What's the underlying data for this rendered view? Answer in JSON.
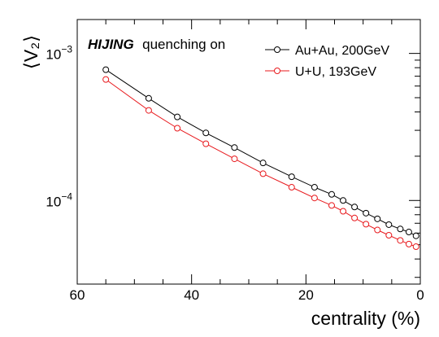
{
  "chart_data": {
    "type": "line",
    "title": "",
    "xlabel": "centrality (%)",
    "ylabel": "⟨V₂⟩",
    "x_reversed": true,
    "xlim": [
      60,
      0
    ],
    "ylim": [
      2.7e-05,
      0.0017
    ],
    "yscale": "log",
    "grid": false,
    "legend_position": "top-right",
    "annotation": {
      "bold": "HIJING",
      "text": "quenching on"
    },
    "x_ticks": [
      60,
      40,
      20,
      0
    ],
    "y_ticks": [
      {
        "value": 0.001,
        "mantissa": "10",
        "exponent": "−3"
      },
      {
        "value": 0.0001,
        "mantissa": "10",
        "exponent": "−4"
      }
    ],
    "x": [
      55,
      47.5,
      42.5,
      37.5,
      32.5,
      27.5,
      22.5,
      18.5,
      15.5,
      13.5,
      11.5,
      9.5,
      7.5,
      5.5,
      3.5,
      2,
      0.75
    ],
    "series": [
      {
        "name": "Au+Au, 200GeV",
        "color": "#000000",
        "values": [
          0.000775,
          0.000495,
          0.00037,
          0.000288,
          0.000229,
          0.00018,
          0.000145,
          0.000123,
          0.00011,
          0.0001,
          9.03e-05,
          8.2e-05,
          7.5e-05,
          6.85e-05,
          6.4e-05,
          6.1e-05,
          5.75e-05
        ]
      },
      {
        "name": "U+U, 193GeV",
        "color": "#e8191d",
        "values": [
          0.000665,
          0.00041,
          0.00031,
          0.000243,
          0.000192,
          0.000152,
          0.000123,
          0.000104,
          9.25e-05,
          8.45e-05,
          7.6e-05,
          6.9e-05,
          6.3e-05,
          5.8e-05,
          5.35e-05,
          5.05e-05,
          4.85e-05
        ]
      }
    ]
  }
}
